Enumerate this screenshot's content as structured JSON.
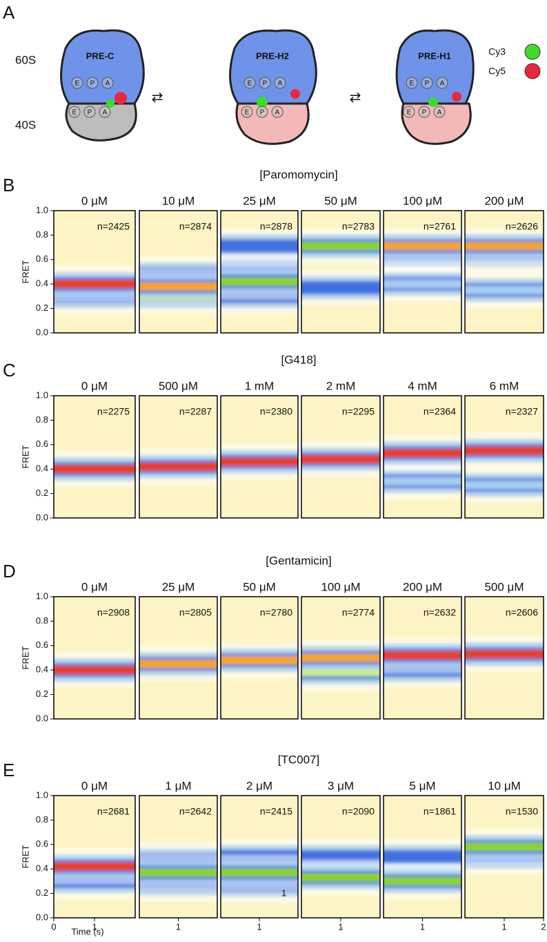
{
  "panel_a": {
    "label": "A",
    "subunits": [
      "60S",
      "40S"
    ],
    "states": [
      "PRE-C",
      "PRE-H2",
      "PRE-H1"
    ],
    "sites": [
      "E",
      "P",
      "A"
    ],
    "legend": [
      {
        "name": "Cy3",
        "color": "#3ddc2a"
      },
      {
        "name": "Cy5",
        "color": "#e8283c"
      }
    ]
  },
  "chart_data": [
    {
      "type": "contour",
      "label": "B",
      "title": "[Paromomycin]",
      "ylabel": "FRET",
      "ylim": [
        0,
        1
      ],
      "yticks": [
        {
          "value": 0,
          "label": "0.0"
        },
        0.2,
        0.4,
        0.6,
        0.8,
        {
          "value": 1,
          "label": "1.0"
        }
      ],
      "background": "#fcf4c4",
      "panels": [
        {
          "name": "0 μM",
          "n": "n=2425",
          "bands": [
            {
              "fret": 0.3,
              "color": "#3f6fe0"
            },
            {
              "fret": 0.4,
              "color": "#e8401c"
            }
          ]
        },
        {
          "name": "10 μM",
          "n": "n=2874",
          "bands": [
            {
              "fret": 0.48,
              "color": "#3f6fe0"
            },
            {
              "fret": 0.3,
              "color": "#8ed322"
            },
            {
              "fret": 0.38,
              "color": "#f5a623"
            }
          ]
        },
        {
          "name": "25 μM",
          "n": "n=2878",
          "bands": [
            {
              "fret": 0.71,
              "color": "#3f6fe0"
            },
            {
              "fret": 0.5,
              "color": "#3f6fe0"
            },
            {
              "fret": 0.3,
              "color": "#3f6fe0"
            },
            {
              "fret": 0.42,
              "color": "#8ed322"
            }
          ]
        },
        {
          "name": "50 μM",
          "n": "n=2783",
          "bands": [
            {
              "fret": 0.37,
              "color": "#3f6fe0"
            },
            {
              "fret": 0.71,
              "color": "#8ed322"
            }
          ]
        },
        {
          "name": "100 μM",
          "n": "n=2761",
          "bands": [
            {
              "fret": 0.4,
              "color": "#a8cdee"
            },
            {
              "fret": 0.64,
              "color": "#3f6fe0"
            },
            {
              "fret": 0.71,
              "color": "#f5a623"
            }
          ]
        },
        {
          "name": "200 μM",
          "n": "n=2626",
          "bands": [
            {
              "fret": 0.35,
              "color": "#a8cdee"
            },
            {
              "fret": 0.64,
              "color": "#3f6fe0"
            },
            {
              "fret": 0.71,
              "color": "#f5a623"
            }
          ]
        }
      ]
    },
    {
      "type": "contour",
      "label": "C",
      "title": "[G418]",
      "ylabel": "FRET",
      "ylim": [
        0,
        1
      ],
      "yticks": [
        {
          "value": 0,
          "label": "0.0"
        },
        0.2,
        0.4,
        0.6,
        0.8,
        {
          "value": 1,
          "label": "1.0"
        }
      ],
      "background": "#fcf4c4",
      "panels": [
        {
          "name": "0 μM",
          "n": "n=2275",
          "bands": [
            {
              "fret": 0.4,
              "color": "#e8401c"
            }
          ]
        },
        {
          "name": "500 μM",
          "n": "n=2287",
          "bands": [
            {
              "fret": 0.42,
              "color": "#e8401c"
            }
          ]
        },
        {
          "name": "1 mM",
          "n": "n=2380",
          "bands": [
            {
              "fret": 0.46,
              "color": "#e8401c"
            }
          ]
        },
        {
          "name": "2 mM",
          "n": "n=2295",
          "bands": [
            {
              "fret": 0.48,
              "color": "#e8401c"
            }
          ]
        },
        {
          "name": "4 mM",
          "n": "n=2364",
          "bands": [
            {
              "fret": 0.3,
              "color": "#a8cdee"
            },
            {
              "fret": 0.53,
              "color": "#e8401c"
            }
          ]
        },
        {
          "name": "6 mM",
          "n": "n=2327",
          "bands": [
            {
              "fret": 0.27,
              "color": "#a8cdee"
            },
            {
              "fret": 0.55,
              "color": "#e8401c"
            }
          ]
        }
      ]
    },
    {
      "type": "contour",
      "label": "D",
      "title": "[Gentamicin]",
      "ylabel": "FRET",
      "ylim": [
        0,
        1
      ],
      "yticks": [
        {
          "value": 0,
          "label": "0.0"
        },
        0.2,
        0.4,
        0.6,
        0.8,
        {
          "value": 1,
          "label": "1.0"
        }
      ],
      "background": "#fcf4c4",
      "panels": [
        {
          "name": "0 μM",
          "n": "n=2908",
          "bands": [
            {
              "fret": 0.4,
              "color": "#e8401c"
            }
          ]
        },
        {
          "name": "25 μM",
          "n": "n=2805",
          "bands": [
            {
              "fret": 0.45,
              "color": "#f5a623"
            }
          ]
        },
        {
          "name": "50 μM",
          "n": "n=2780",
          "bands": [
            {
              "fret": 0.48,
              "color": "#f5a623"
            }
          ]
        },
        {
          "name": "100 μM",
          "n": "n=2774",
          "bands": [
            {
              "fret": 0.38,
              "color": "#8ed322"
            },
            {
              "fret": 0.5,
              "color": "#f5a623"
            }
          ]
        },
        {
          "name": "200 μM",
          "n": "n=2632",
          "bands": [
            {
              "fret": 0.4,
              "color": "#3f6fe0"
            },
            {
              "fret": 0.52,
              "color": "#e8401c"
            }
          ]
        },
        {
          "name": "500 μM",
          "n": "n=2606",
          "bands": [
            {
              "fret": 0.53,
              "color": "#e8401c"
            }
          ]
        }
      ]
    },
    {
      "type": "contour",
      "label": "E",
      "title": "[TC007]",
      "ylabel": "FRET",
      "xlabel": "Time (s)",
      "xlim": [
        0,
        2
      ],
      "ylim": [
        0,
        1
      ],
      "yticks": [
        {
          "value": 0,
          "label": "0.0"
        },
        0.2,
        0.4,
        0.6,
        0.8,
        {
          "value": 1,
          "label": "1.0"
        }
      ],
      "background": "#fcf4c4",
      "panels": [
        {
          "name": "0 μM",
          "n": "n=2681",
          "xticks": [
            0,
            1
          ],
          "bands": [
            {
              "fret": 0.3,
              "color": "#3f6fe0"
            },
            {
              "fret": 0.42,
              "color": "#e8401c"
            }
          ]
        },
        {
          "name": "1 μM",
          "n": "n=2642",
          "xticks": [
            1
          ],
          "bands": [
            {
              "fret": 0.47,
              "color": "#3f6fe0"
            },
            {
              "fret": 0.28,
              "color": "#3f6fe0"
            },
            {
              "fret": 0.37,
              "color": "#8ed322"
            }
          ]
        },
        {
          "name": "2 μM",
          "n": "n=2415",
          "xticks": [
            1
          ],
          "annotation": "1",
          "bands": [
            {
              "fret": 0.5,
              "color": "#3f6fe0"
            },
            {
              "fret": 0.27,
              "color": "#3f6fe0"
            },
            {
              "fret": 0.37,
              "color": "#8ed322"
            }
          ]
        },
        {
          "name": "3 μM",
          "n": "n=2090",
          "xticks": [
            1
          ],
          "bands": [
            {
              "fret": 0.5,
              "color": "#3f6fe0"
            },
            {
              "fret": 0.33,
              "color": "#8ed322"
            }
          ]
        },
        {
          "name": "5 μM",
          "n": "n=1861",
          "xticks": [
            1
          ],
          "bands": [
            {
              "fret": 0.5,
              "color": "#3f6fe0"
            },
            {
              "fret": 0.3,
              "color": "#8ed322"
            }
          ]
        },
        {
          "name": "10 μM",
          "n": "n=1530",
          "xticks": [
            1,
            2
          ],
          "bands": [
            {
              "fret": 0.5,
              "color": "#3f6fe0"
            },
            {
              "fret": 0.58,
              "color": "#8ed322"
            }
          ]
        }
      ]
    }
  ]
}
